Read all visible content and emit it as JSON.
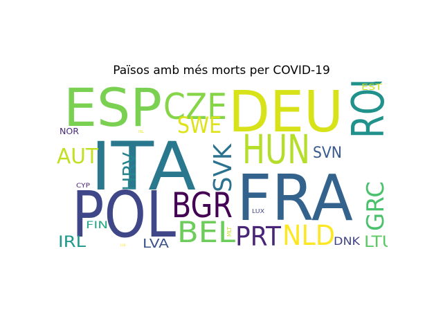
{
  "title": "Països amb més morts per COVID-19",
  "words": [
    {
      "text": "ITA",
      "color": "#2a788e"
    },
    {
      "text": "DEU",
      "color": "#d8e219"
    },
    {
      "text": "FRA",
      "color": "#33638d"
    },
    {
      "text": "POL",
      "color": "#3f4788"
    },
    {
      "text": "ESP",
      "color": "#7ad151"
    },
    {
      "text": "ROU",
      "color": "#21918c"
    },
    {
      "text": "HUN",
      "color": "#b5de2b"
    },
    {
      "text": "CZE",
      "color": "#86d549"
    },
    {
      "text": "BGR",
      "color": "#440154"
    },
    {
      "text": "BEL",
      "color": "#6ccd5a"
    },
    {
      "text": "NLD",
      "color": "#fde725"
    },
    {
      "text": "PRT",
      "color": "#482576"
    },
    {
      "text": "SWE",
      "color": "#dde318"
    },
    {
      "text": "SVK",
      "color": "#2c728e"
    },
    {
      "text": "GRC",
      "color": "#4ac16d"
    },
    {
      "text": "AUT",
      "color": "#c2df23"
    },
    {
      "text": "HRV",
      "color": "#25848e"
    },
    {
      "text": "SVN",
      "color": "#38598c"
    },
    {
      "text": "LTU",
      "color": "#5ec962"
    },
    {
      "text": "IRL",
      "color": "#1f988b"
    },
    {
      "text": "LVA",
      "color": "#3b528b"
    },
    {
      "text": "DNK",
      "color": "#414487"
    },
    {
      "text": "FIN",
      "color": "#22a884"
    },
    {
      "text": "EST",
      "color": "#c8e020"
    },
    {
      "text": "NOR",
      "color": "#482878"
    },
    {
      "text": "CYP",
      "color": "#481f70"
    },
    {
      "text": "LUX",
      "color": "#404688"
    },
    {
      "text": "MLT",
      "color": "#c8e020"
    },
    {
      "text": "ISL",
      "color": "#e5e419"
    },
    {
      "text": "LIE",
      "color": "#fde725"
    }
  ]
}
